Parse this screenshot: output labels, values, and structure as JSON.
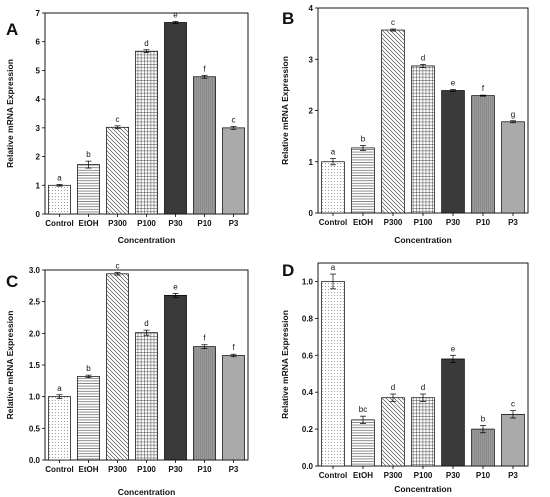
{
  "chart_data": [
    {
      "type": "bar",
      "panel": "A",
      "categories": [
        "Control",
        "EtOH",
        "P300",
        "P100",
        "P30",
        "P10",
        "P3"
      ],
      "values": [
        1.0,
        1.72,
        3.02,
        5.67,
        6.67,
        4.78,
        3.0
      ],
      "errors": [
        0.03,
        0.12,
        0.05,
        0.05,
        0.04,
        0.05,
        0.05
      ],
      "significance": [
        "a",
        "b",
        "c",
        "d",
        "e",
        "f",
        "c"
      ],
      "patterns": [
        "dots",
        "hlines",
        "back-diag",
        "grid",
        "solid",
        "vlines-dense",
        "vlines-fine"
      ],
      "xlabel": "Concentration",
      "ylabel": "Relative mRNA Expression",
      "ylim": [
        0,
        7
      ],
      "yticks": [
        "0",
        "1",
        "2",
        "3",
        "4",
        "5",
        "6",
        "7"
      ],
      "grid": false,
      "legend": "none"
    },
    {
      "type": "bar",
      "panel": "B",
      "categories": [
        "Control",
        "EtOH",
        "P300",
        "P100",
        "P30",
        "P10",
        "P3"
      ],
      "values": [
        1.0,
        1.27,
        3.57,
        2.87,
        2.39,
        2.29,
        1.78
      ],
      "errors": [
        0.06,
        0.05,
        0.02,
        0.03,
        0.02,
        0.01,
        0.02
      ],
      "significance": [
        "a",
        "b",
        "c",
        "d",
        "e",
        "f",
        "g"
      ],
      "patterns": [
        "dots",
        "hlines",
        "back-diag",
        "grid",
        "solid",
        "vlines-dense",
        "vlines-fine"
      ],
      "xlabel": "Concentration",
      "ylabel": "Relative mRNA Expression",
      "ylim": [
        0,
        4
      ],
      "yticks": [
        "0",
        "1",
        "2",
        "3",
        "4"
      ],
      "grid": false,
      "legend": "none"
    },
    {
      "type": "bar",
      "panel": "C",
      "categories": [
        "Control",
        "EtOH",
        "P300",
        "P100",
        "P30",
        "P10",
        "P3"
      ],
      "values": [
        1.0,
        1.32,
        2.94,
        2.01,
        2.6,
        1.79,
        1.65
      ],
      "errors": [
        0.03,
        0.02,
        0.02,
        0.04,
        0.03,
        0.03,
        0.02
      ],
      "significance": [
        "a",
        "b",
        "c",
        "d",
        "e",
        "f",
        "f"
      ],
      "patterns": [
        "dots",
        "hlines",
        "back-diag",
        "grid",
        "solid",
        "vlines-dense",
        "vlines-fine"
      ],
      "xlabel": "Concentration",
      "ylabel": "Relative mRNA Expression",
      "ylim": [
        0,
        3.0
      ],
      "yticks": [
        "0.0",
        "0.5",
        "1.0",
        "1.5",
        "2.0",
        "2.5",
        "3.0"
      ],
      "grid": false,
      "legend": "none"
    },
    {
      "type": "bar",
      "panel": "D",
      "categories": [
        "Control",
        "EtOH",
        "P300",
        "P100",
        "P30",
        "P10",
        "P3"
      ],
      "values": [
        1.0,
        0.25,
        0.37,
        0.37,
        0.58,
        0.2,
        0.28
      ],
      "errors": [
        0.04,
        0.02,
        0.02,
        0.02,
        0.02,
        0.02,
        0.02
      ],
      "significance": [
        "a",
        "bc",
        "d",
        "d",
        "e",
        "b",
        "c"
      ],
      "patterns": [
        "dots",
        "hlines",
        "back-diag",
        "grid",
        "solid",
        "vlines-dense",
        "vlines-fine"
      ],
      "xlabel": "Concentration",
      "ylabel": "Relative mRNA Expression",
      "ylim": [
        0,
        1.1
      ],
      "yticks": [
        "0.0",
        "0.2",
        "0.4",
        "0.6",
        "0.8",
        "1.0"
      ],
      "grid": false,
      "legend": "none"
    }
  ]
}
